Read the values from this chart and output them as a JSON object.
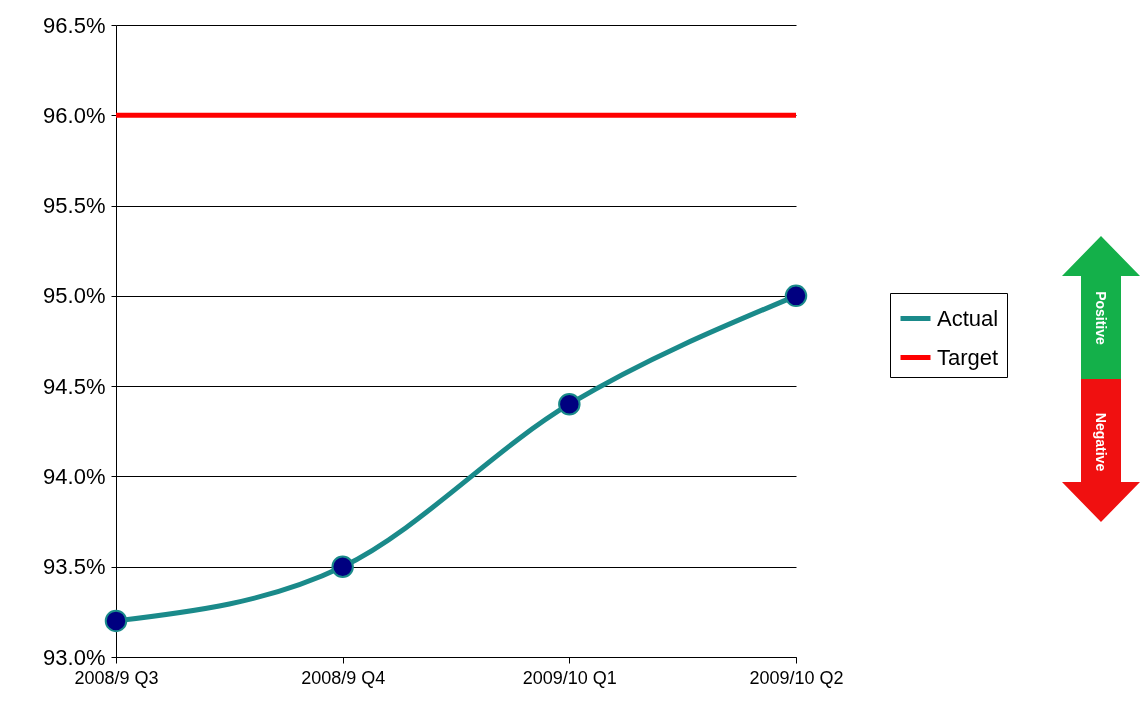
{
  "chart_data": {
    "type": "line",
    "categories": [
      "2008/9 Q3",
      "2008/9 Q4",
      "2009/10 Q1",
      "2009/10 Q2"
    ],
    "series": [
      {
        "name": "Actual",
        "color": "#1a8a8a",
        "values": [
          93.2,
          93.5,
          94.4,
          95.0
        ],
        "marker": "circle"
      },
      {
        "name": "Target",
        "color": "#ff0000",
        "values": [
          96.0,
          96.0,
          96.0,
          96.0
        ],
        "marker": "none"
      }
    ],
    "ylim": [
      93.0,
      96.5
    ],
    "yticks": [
      {
        "value": 93.0,
        "label": "93.0%"
      },
      {
        "value": 93.5,
        "label": "93.5%"
      },
      {
        "value": 94.0,
        "label": "94.0%"
      },
      {
        "value": 94.5,
        "label": "94.5%"
      },
      {
        "value": 95.0,
        "label": "95.0%"
      },
      {
        "value": 95.5,
        "label": "95.5%"
      },
      {
        "value": 96.0,
        "label": "96.0%"
      },
      {
        "value": 96.5,
        "label": "96.5%"
      }
    ],
    "grid": "y",
    "legend": "right",
    "annotations": [
      "Positive",
      "Negative"
    ]
  }
}
